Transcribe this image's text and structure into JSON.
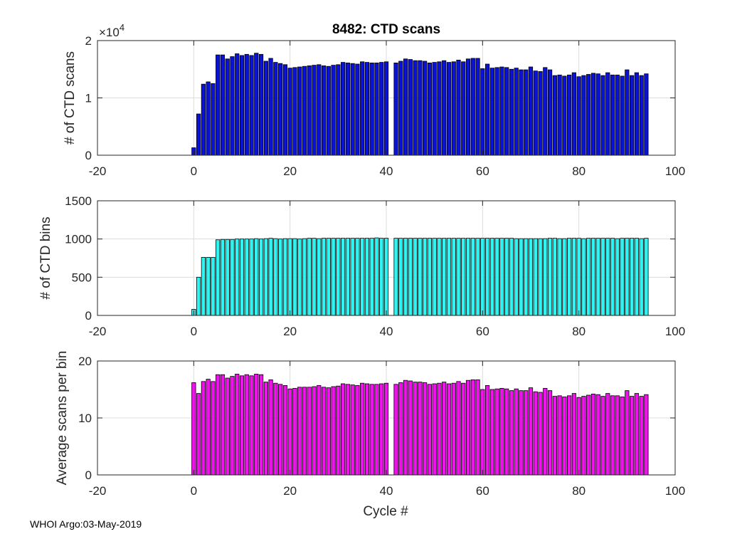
{
  "title": "8482: CTD scans",
  "footer": "WHOI Argo:03-May-2019",
  "chart_data": [
    {
      "type": "bar",
      "ylabel": "# of CTD scans",
      "exponent_label": "×10",
      "exponent": "4",
      "xlim": [
        -20,
        100
      ],
      "ylim": [
        0,
        20000
      ],
      "xticks": [
        -20,
        0,
        20,
        40,
        60,
        80,
        100
      ],
      "yticks": [
        0,
        10000,
        20000
      ],
      "ytick_labels": [
        "0",
        "1",
        "2"
      ],
      "bar_color": "#0a12d6",
      "grid": true,
      "x": [
        0,
        1,
        2,
        3,
        4,
        5,
        6,
        7,
        8,
        9,
        10,
        11,
        12,
        13,
        14,
        15,
        16,
        17,
        18,
        19,
        20,
        21,
        22,
        23,
        24,
        25,
        26,
        27,
        28,
        29,
        30,
        31,
        32,
        33,
        34,
        35,
        36,
        37,
        38,
        39,
        40,
        42,
        43,
        44,
        45,
        46,
        47,
        48,
        49,
        50,
        51,
        52,
        53,
        54,
        55,
        56,
        57,
        58,
        59,
        60,
        61,
        62,
        63,
        64,
        65,
        66,
        67,
        68,
        69,
        70,
        71,
        72,
        73,
        74,
        75,
        76,
        77,
        78,
        79,
        80,
        81,
        82,
        83,
        84,
        85,
        86,
        87,
        88,
        89,
        90,
        91,
        92,
        93,
        94
      ],
      "values": [
        1300,
        7200,
        12400,
        12800,
        12500,
        17500,
        17500,
        16800,
        17200,
        17700,
        17400,
        17600,
        17400,
        17800,
        17600,
        16400,
        16900,
        16200,
        16000,
        15800,
        15200,
        15300,
        15400,
        15500,
        15600,
        15700,
        15800,
        15600,
        15500,
        15700,
        15800,
        16200,
        16100,
        16000,
        15900,
        16300,
        16200,
        16100,
        16100,
        16200,
        16300,
        16100,
        16400,
        16800,
        16700,
        16500,
        16500,
        16400,
        16100,
        16200,
        16300,
        16500,
        16200,
        16300,
        16600,
        16300,
        16800,
        16900,
        16900,
        15100,
        15900,
        15200,
        15300,
        15400,
        15300,
        15000,
        15200,
        14900,
        14900,
        15400,
        14700,
        14600,
        15300,
        14900,
        13900,
        14000,
        13800,
        14000,
        14400,
        13700,
        13900,
        14100,
        14300,
        14200,
        13900,
        14400,
        14000,
        14000,
        13800,
        14900,
        13900,
        14400,
        13900,
        14200
      ]
    },
    {
      "type": "bar",
      "ylabel": "# of CTD bins",
      "xlim": [
        -20,
        100
      ],
      "ylim": [
        0,
        1500
      ],
      "xticks": [
        -20,
        0,
        20,
        40,
        60,
        80,
        100
      ],
      "yticks": [
        0,
        500,
        1000,
        1500
      ],
      "ytick_labels": [
        "0",
        "500",
        "1000",
        "1500"
      ],
      "bar_color": "#2ff5f2",
      "grid": true,
      "x": [
        0,
        1,
        2,
        3,
        4,
        5,
        6,
        7,
        8,
        9,
        10,
        11,
        12,
        13,
        14,
        15,
        16,
        17,
        18,
        19,
        20,
        21,
        22,
        23,
        24,
        25,
        26,
        27,
        28,
        29,
        30,
        31,
        32,
        33,
        34,
        35,
        36,
        37,
        38,
        39,
        40,
        42,
        43,
        44,
        45,
        46,
        47,
        48,
        49,
        50,
        51,
        52,
        53,
        54,
        55,
        56,
        57,
        58,
        59,
        60,
        61,
        62,
        63,
        64,
        65,
        66,
        67,
        68,
        69,
        70,
        71,
        72,
        73,
        74,
        75,
        76,
        77,
        78,
        79,
        80,
        81,
        82,
        83,
        84,
        85,
        86,
        87,
        88,
        89,
        90,
        91,
        92,
        93,
        94
      ],
      "values": [
        80,
        500,
        760,
        760,
        760,
        990,
        995,
        995,
        995,
        1000,
        1000,
        1000,
        1000,
        1005,
        1000,
        1005,
        1010,
        1005,
        1000,
        1005,
        1005,
        1005,
        1000,
        1005,
        1010,
        1010,
        1005,
        1010,
        1010,
        1010,
        1010,
        1010,
        1010,
        1010,
        1010,
        1010,
        1010,
        1010,
        1015,
        1010,
        1010,
        1010,
        1010,
        1010,
        1010,
        1010,
        1010,
        1010,
        1010,
        1010,
        1010,
        1010,
        1010,
        1010,
        1010,
        1010,
        1010,
        1010,
        1010,
        1010,
        1010,
        1010,
        1010,
        1010,
        1010,
        1010,
        1005,
        1005,
        1005,
        1005,
        1005,
        1005,
        1005,
        1010,
        1010,
        1005,
        1005,
        1010,
        1010,
        1010,
        1005,
        1010,
        1010,
        1010,
        1010,
        1010,
        1010,
        1005,
        1010,
        1010,
        1010,
        1010,
        1005,
        1010
      ]
    },
    {
      "type": "bar",
      "ylabel": "Average scans per bin",
      "xlabel": "Cycle #",
      "xlim": [
        -20,
        100
      ],
      "ylim": [
        0,
        20
      ],
      "xticks": [
        -20,
        0,
        20,
        40,
        60,
        80,
        100
      ],
      "yticks": [
        0,
        10,
        20
      ],
      "ytick_labels": [
        "0",
        "10",
        "20"
      ],
      "bar_color": "#f012ec",
      "grid": true,
      "x": [
        0,
        1,
        2,
        3,
        4,
        5,
        6,
        7,
        8,
        9,
        10,
        11,
        12,
        13,
        14,
        15,
        16,
        17,
        18,
        19,
        20,
        21,
        22,
        23,
        24,
        25,
        26,
        27,
        28,
        29,
        30,
        31,
        32,
        33,
        34,
        35,
        36,
        37,
        38,
        39,
        40,
        42,
        43,
        44,
        45,
        46,
        47,
        48,
        49,
        50,
        51,
        52,
        53,
        54,
        55,
        56,
        57,
        58,
        59,
        60,
        61,
        62,
        63,
        64,
        65,
        66,
        67,
        68,
        69,
        70,
        71,
        72,
        73,
        74,
        75,
        76,
        77,
        78,
        79,
        80,
        81,
        82,
        83,
        84,
        85,
        86,
        87,
        88,
        89,
        90,
        91,
        92,
        93,
        94
      ],
      "values": [
        16.2,
        14.3,
        16.4,
        16.8,
        16.4,
        17.6,
        17.6,
        17.0,
        17.3,
        17.7,
        17.4,
        17.6,
        17.4,
        17.7,
        17.6,
        16.3,
        16.7,
        16.1,
        15.9,
        15.7,
        15.1,
        15.2,
        15.4,
        15.4,
        15.4,
        15.5,
        15.7,
        15.4,
        15.3,
        15.5,
        15.6,
        16.0,
        15.9,
        15.8,
        15.7,
        16.1,
        16.0,
        15.9,
        15.9,
        16.0,
        16.1,
        15.9,
        16.2,
        16.6,
        16.5,
        16.3,
        16.3,
        16.2,
        15.9,
        16.0,
        16.1,
        16.3,
        16.0,
        16.1,
        16.4,
        16.1,
        16.6,
        16.7,
        16.7,
        15.0,
        15.7,
        15.0,
        15.1,
        15.2,
        15.1,
        14.8,
        15.1,
        14.8,
        14.8,
        15.3,
        14.6,
        14.5,
        15.2,
        14.8,
        13.8,
        13.9,
        13.7,
        13.9,
        14.3,
        13.6,
        13.8,
        14.0,
        14.2,
        14.1,
        13.8,
        14.3,
        13.9,
        13.9,
        13.7,
        14.8,
        13.8,
        14.3,
        13.8,
        14.1
      ]
    }
  ]
}
